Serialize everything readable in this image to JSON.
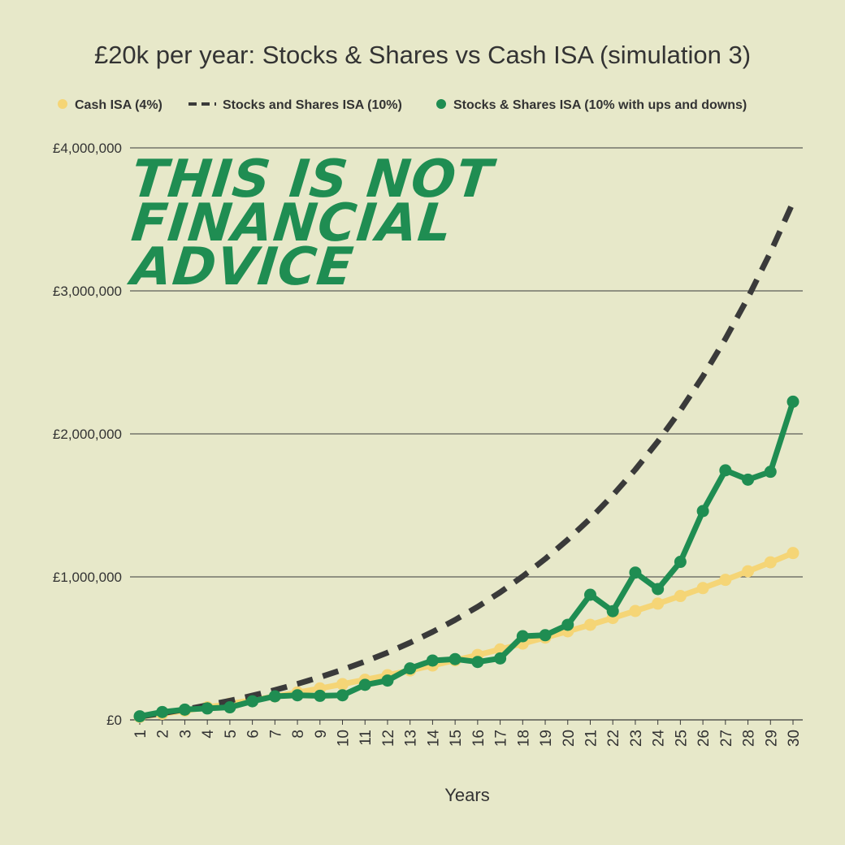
{
  "chart_data": {
    "type": "line",
    "title": "£20k per year: Stocks & Shares vs Cash ISA (simulation 3)",
    "xlabel": "Years",
    "ylabel": "",
    "ylim": [
      0,
      4000000
    ],
    "x": [
      1,
      2,
      3,
      4,
      5,
      6,
      7,
      8,
      9,
      10,
      11,
      12,
      13,
      14,
      15,
      16,
      17,
      18,
      19,
      20,
      21,
      22,
      23,
      24,
      25,
      26,
      27,
      28,
      29,
      30
    ],
    "y_ticks": [
      0,
      1000000,
      2000000,
      3000000,
      4000000
    ],
    "y_tick_labels": [
      "£0",
      "£1,000,000",
      "£2,000,000",
      "£3,000,000",
      "£4,000,000"
    ],
    "grid": "horizontal",
    "legend_position": "top",
    "annotation_lines": [
      "THIS IS NOT",
      "FINANCIAL",
      "ADVICE"
    ],
    "series": [
      {
        "name": "Cash ISA (4%)",
        "style": "line-markers",
        "color": "#f5d576",
        "values": [
          20800,
          42432,
          64929,
          88327,
          112660,
          137966,
          164285,
          191656,
          220122,
          249727,
          280516,
          312537,
          345838,
          380472,
          416491,
          453951,
          492909,
          533425,
          575562,
          619384,
          664959,
          712357,
          761651,
          812917,
          866234,
          921683,
          979351,
          1039325,
          1101698,
          1166566
        ]
      },
      {
        "name": "Stocks and Shares ISA (10%)",
        "style": "dashed",
        "color": "#3a3a3a",
        "values": [
          22000,
          46200,
          72820,
          102102,
          134312,
          169743,
          208718,
          251590,
          298749,
          350624,
          407686,
          470455,
          539501,
          615451,
          698996,
          790896,
          891985,
          1003184,
          1125502,
          1260053,
          1408058,
          1570864,
          1749950,
          1946945,
          2163640,
          2402004,
          2664204,
          2952625,
          3269887,
          3618876
        ]
      },
      {
        "name": "Stocks & Shares ISA (10% with ups and downs)",
        "style": "line-markers",
        "color": "#1f8d52",
        "values": [
          25000,
          55000,
          72000,
          80000,
          88000,
          130000,
          165000,
          172000,
          168000,
          172000,
          245000,
          275000,
          360000,
          415000,
          425000,
          405000,
          430000,
          585000,
          592000,
          665000,
          875000,
          760000,
          1030000,
          915000,
          1105000,
          1460000,
          1745000,
          1680000,
          1735000,
          2225000
        ]
      }
    ]
  }
}
